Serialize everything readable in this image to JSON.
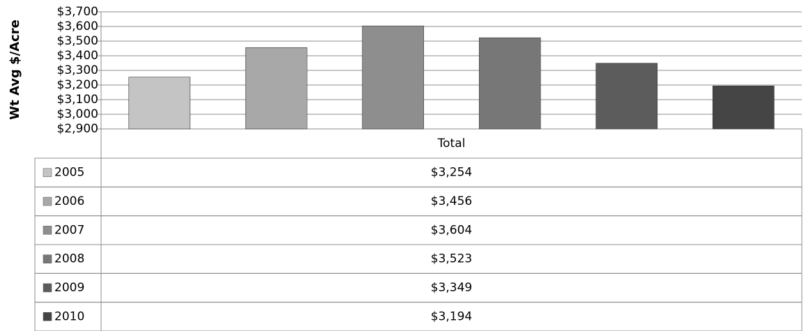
{
  "chart_data": {
    "type": "bar",
    "y_label": "Wt Avg $/Acre",
    "categories": [
      "Total"
    ],
    "series": [
      {
        "name": "2005",
        "color": "#c4c4c4",
        "values": [
          3254
        ],
        "value_labels": [
          "$3,254"
        ]
      },
      {
        "name": "2006",
        "color": "#a8a8a8",
        "values": [
          3456
        ],
        "value_labels": [
          "$3,456"
        ]
      },
      {
        "name": "2007",
        "color": "#8e8e8e",
        "values": [
          3604
        ],
        "value_labels": [
          "$3,604"
        ]
      },
      {
        "name": "2008",
        "color": "#777777",
        "values": [
          3523
        ],
        "value_labels": [
          "$3,523"
        ]
      },
      {
        "name": "2009",
        "color": "#5c5c5c",
        "values": [
          3349
        ],
        "value_labels": [
          "$3,349"
        ]
      },
      {
        "name": "2010",
        "color": "#454545",
        "values": [
          3194
        ],
        "value_labels": [
          "$3,194"
        ]
      }
    ],
    "ylim": [
      2900,
      3700
    ],
    "yticks": [
      {
        "value": 2900,
        "label": "$2,900"
      },
      {
        "value": 3000,
        "label": "$3,000"
      },
      {
        "value": 3100,
        "label": "$3,100"
      },
      {
        "value": 3200,
        "label": "$3,200"
      },
      {
        "value": 3300,
        "label": "$3,300"
      },
      {
        "value": 3400,
        "label": "$3,400"
      },
      {
        "value": 3500,
        "label": "$3,500"
      },
      {
        "value": 3600,
        "label": "$3,600"
      },
      {
        "value": 3700,
        "label": "$3,700"
      }
    ],
    "grid": true
  }
}
